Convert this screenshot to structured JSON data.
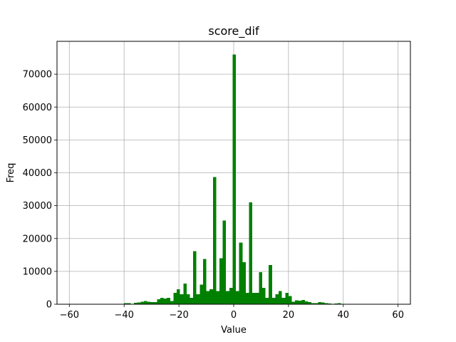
{
  "chart_data": {
    "type": "bar",
    "title": "score_dif",
    "xlabel": "Value",
    "ylabel": "Freq",
    "xlim": [
      -64.5,
      64.5
    ],
    "ylim": [
      0,
      80000
    ],
    "xticks": [
      -60,
      -40,
      -20,
      0,
      20,
      40,
      60
    ],
    "yticks": [
      0,
      10000,
      20000,
      30000,
      40000,
      50000,
      60000,
      70000
    ],
    "grid": true,
    "bar_color": "#008000",
    "bin_width": 1.2,
    "x": [
      -39.4,
      -38.2,
      -35.8,
      -34.6,
      -33.4,
      -32.2,
      -31.0,
      -29.8,
      -28.6,
      -27.4,
      -26.2,
      -25.0,
      -23.8,
      -22.6,
      -21.4,
      -20.2,
      -19.0,
      -17.8,
      -16.6,
      -15.4,
      -14.2,
      -13.0,
      -11.8,
      -10.6,
      -9.4,
      -8.2,
      -7.0,
      -5.8,
      -4.6,
      -3.4,
      -2.2,
      -1.0,
      0.2,
      1.4,
      2.6,
      3.8,
      5.0,
      6.2,
      7.4,
      8.6,
      9.8,
      11.0,
      12.2,
      13.4,
      14.6,
      15.8,
      17.0,
      18.2,
      19.4,
      20.6,
      21.8,
      23.0,
      24.2,
      25.4,
      26.6,
      27.8,
      29.0,
      30.2,
      31.4,
      32.6,
      33.8,
      35.0,
      37.4,
      38.6
    ],
    "values": [
      300,
      300,
      400,
      500,
      800,
      1000,
      800,
      600,
      700,
      1500,
      2000,
      1700,
      2000,
      1000,
      3500,
      4500,
      3000,
      6300,
      3000,
      2000,
      16200,
      3000,
      6000,
      13800,
      4000,
      4500,
      38700,
      4000,
      14000,
      25500,
      4000,
      5000,
      76000,
      4000,
      18800,
      12800,
      3500,
      31000,
      3500,
      3500,
      9800,
      5000,
      2000,
      11900,
      2000,
      3000,
      4000,
      2000,
      3500,
      2500,
      800,
      1200,
      1100,
      1300,
      900,
      600,
      300,
      300,
      600,
      500,
      300,
      200,
      200,
      300
    ]
  }
}
